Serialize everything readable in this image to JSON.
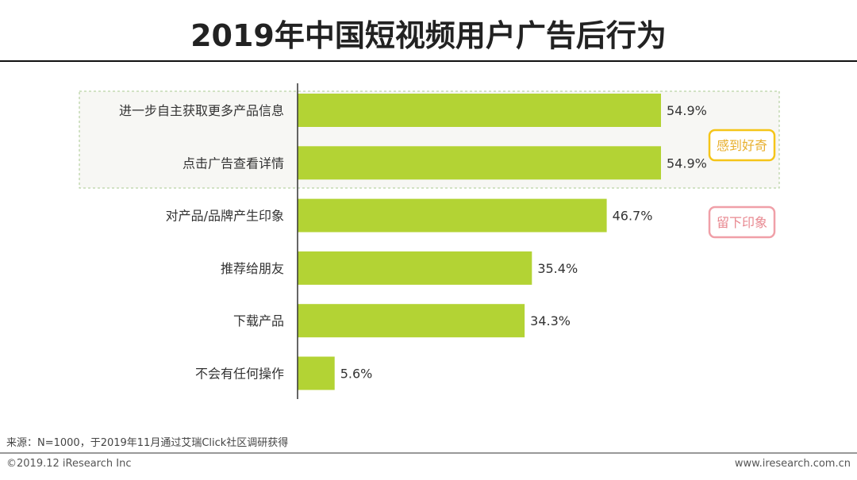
{
  "title": "2019年中国短视频用户广告后行为",
  "chart_data": {
    "type": "bar",
    "orientation": "horizontal",
    "title": "2019年中国短视频用户广告后行为",
    "categories": [
      "进一步自主获取更多产品信息",
      "点击广告查看详情",
      "对产品/品牌产生印象",
      "推荐给朋友",
      "下载产品",
      "不会有任何操作"
    ],
    "values": [
      54.9,
      54.9,
      46.7,
      35.4,
      34.3,
      5.6
    ],
    "labels": [
      "54.9%",
      "54.9%",
      "46.7%",
      "35.4%",
      "34.3%",
      "5.6%"
    ],
    "xlim": [
      0,
      100
    ],
    "grid": false,
    "bar_color": "#b3d334",
    "annotations": [
      {
        "text": "感到好奇",
        "color": "#f5c518",
        "text_color": "#e8b030",
        "group": [
          0,
          1
        ]
      },
      {
        "text": "留下印象",
        "color": "#f0a0a8",
        "text_color": "#e88890",
        "group": [
          2
        ]
      }
    ]
  },
  "footer": {
    "source": "来源：N=1000，于2019年11月通过艾瑞Click社区调研获得",
    "copyright": "©2019.12 iResearch Inc",
    "website": "www.iresearch.com.cn"
  }
}
